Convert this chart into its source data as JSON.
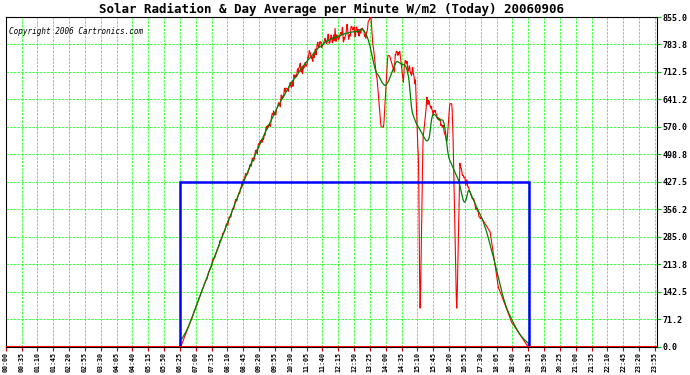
{
  "title": "Solar Radiation & Day Average per Minute W/m2 (Today) 20060906",
  "copyright": "Copyright 2006 Cartronics.com",
  "bg_color": "#ffffff",
  "plot_bg_color": "#ffffff",
  "grid_color": "#00ff00",
  "ytick_values": [
    0.0,
    71.2,
    142.5,
    213.8,
    285.0,
    356.2,
    427.5,
    498.8,
    570.0,
    641.2,
    712.5,
    783.8,
    855.0
  ],
  "ylim": [
    0.0,
    855.0
  ],
  "solar_color": "#ff0000",
  "avg_color": "#008000",
  "rect_color": "#0000ff",
  "rect_x_start": 386,
  "rect_x_end": 1156,
  "rect_y_top": 427.5,
  "sunrise": 386,
  "sunset": 1156,
  "xlim": [
    0,
    1439
  ],
  "x_tick_interval": 35,
  "title_fontsize": 9,
  "copyright_fontsize": 5.5,
  "figwidth": 6.9,
  "figheight": 3.75,
  "dpi": 100
}
